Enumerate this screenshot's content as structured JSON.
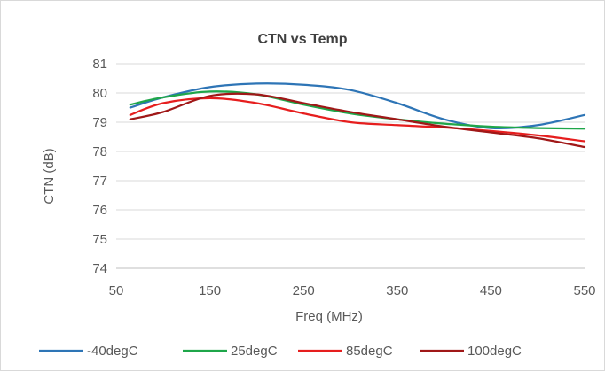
{
  "chart_data": {
    "type": "line",
    "title": "CTN vs Temp",
    "xlabel": "Freq (MHz)",
    "ylabel": "CTN (dB)",
    "xlim": [
      50,
      550
    ],
    "ylim": [
      74,
      81
    ],
    "x_ticks": [
      50,
      150,
      250,
      350,
      450,
      550
    ],
    "y_ticks": [
      74,
      75,
      76,
      77,
      78,
      79,
      80,
      81
    ],
    "grid": "horizontal",
    "legend": "bottom",
    "series": [
      {
        "name": "-40degC",
        "color": "#2e75b6",
        "x": [
          65,
          100,
          150,
          200,
          250,
          300,
          350,
          400,
          450,
          500,
          550
        ],
        "y": [
          79.5,
          79.85,
          80.2,
          80.32,
          80.28,
          80.1,
          79.65,
          79.1,
          78.8,
          78.9,
          79.25
        ]
      },
      {
        "name": "25degC",
        "color": "#1fa64a",
        "x": [
          65,
          100,
          150,
          200,
          250,
          300,
          350,
          400,
          450,
          500,
          550
        ],
        "y": [
          79.6,
          79.85,
          80.05,
          79.95,
          79.6,
          79.3,
          79.1,
          78.95,
          78.85,
          78.8,
          78.78
        ]
      },
      {
        "name": "85degC",
        "color": "#e61e1e",
        "x": [
          65,
          100,
          150,
          200,
          250,
          300,
          350,
          400,
          450,
          500,
          550
        ],
        "y": [
          79.25,
          79.65,
          79.82,
          79.65,
          79.3,
          79.0,
          78.9,
          78.82,
          78.7,
          78.55,
          78.35
        ]
      },
      {
        "name": "100degC",
        "color": "#a01818",
        "x": [
          65,
          100,
          150,
          200,
          250,
          300,
          350,
          400,
          450,
          500,
          550
        ],
        "y": [
          79.1,
          79.35,
          79.9,
          79.95,
          79.65,
          79.35,
          79.1,
          78.85,
          78.65,
          78.45,
          78.15
        ]
      }
    ]
  }
}
